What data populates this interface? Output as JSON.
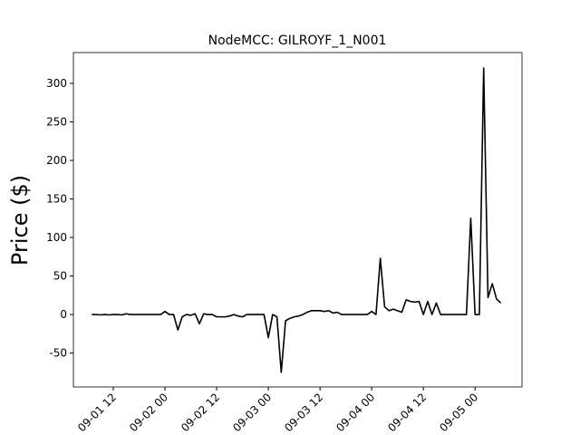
{
  "chart_data": {
    "type": "line",
    "title": "NodeMCC: GILROYF_1_N001",
    "y_label": "Price ($)",
    "x": [
      7,
      8,
      9,
      10,
      11,
      12,
      13,
      14,
      15,
      16,
      17,
      18,
      19,
      20,
      21,
      22,
      23,
      24,
      25,
      26,
      27,
      28,
      29,
      30,
      31,
      32,
      33,
      34,
      35,
      36,
      37,
      38,
      39,
      40,
      41,
      42,
      43,
      44,
      45,
      46,
      47,
      48,
      49,
      50,
      51,
      52,
      53,
      54,
      55,
      56,
      57,
      58,
      59,
      60,
      61,
      62,
      63,
      64,
      65,
      66,
      67,
      68,
      69,
      70,
      71,
      72,
      73,
      74,
      75,
      76,
      77,
      78,
      79,
      80,
      81,
      82,
      83,
      84,
      85,
      86,
      87,
      88,
      89,
      90,
      91,
      92,
      93,
      94,
      95,
      96,
      97,
      98,
      99,
      100,
      101,
      102
    ],
    "series": [
      {
        "name": "Price",
        "color": "#000000",
        "values": [
          0,
          0,
          -0.5,
          0,
          -0.5,
          0,
          0,
          -0.5,
          1,
          0,
          0,
          0,
          0,
          0,
          0,
          0,
          0,
          4,
          0,
          0,
          -20,
          -3,
          0,
          -1,
          1,
          -12,
          1,
          0,
          0,
          -3,
          -3,
          -3,
          -2,
          0,
          -2,
          -3,
          0,
          0,
          0,
          0,
          0,
          -30,
          0,
          -3,
          -75,
          -8,
          -5,
          -3,
          -2,
          0,
          3,
          5,
          5,
          5,
          4,
          5,
          2,
          3,
          0,
          0,
          0,
          0,
          0,
          0,
          0,
          4,
          0,
          73,
          10,
          5,
          7,
          5,
          3,
          19,
          17,
          16,
          17,
          0,
          17,
          0,
          15,
          0,
          0,
          0,
          0,
          0,
          0,
          0,
          125,
          0,
          0,
          320,
          22,
          40,
          20,
          15
        ]
      }
    ],
    "xlim": [
      2.74,
      106.9
    ],
    "xticks": [
      {
        "value": 12,
        "label": "09-01 12"
      },
      {
        "value": 24,
        "label": "09-02 00"
      },
      {
        "value": 36,
        "label": "09-02 12"
      },
      {
        "value": 48,
        "label": "09-03 00"
      },
      {
        "value": 60,
        "label": "09-03 12"
      },
      {
        "value": 72,
        "label": "09-04 00"
      },
      {
        "value": 84,
        "label": "09-04 12"
      },
      {
        "value": 96,
        "label": "09-05 00"
      }
    ],
    "ylim": [
      -94,
      340
    ],
    "yticks": [
      -50,
      0,
      50,
      100,
      150,
      200,
      250,
      300
    ]
  }
}
